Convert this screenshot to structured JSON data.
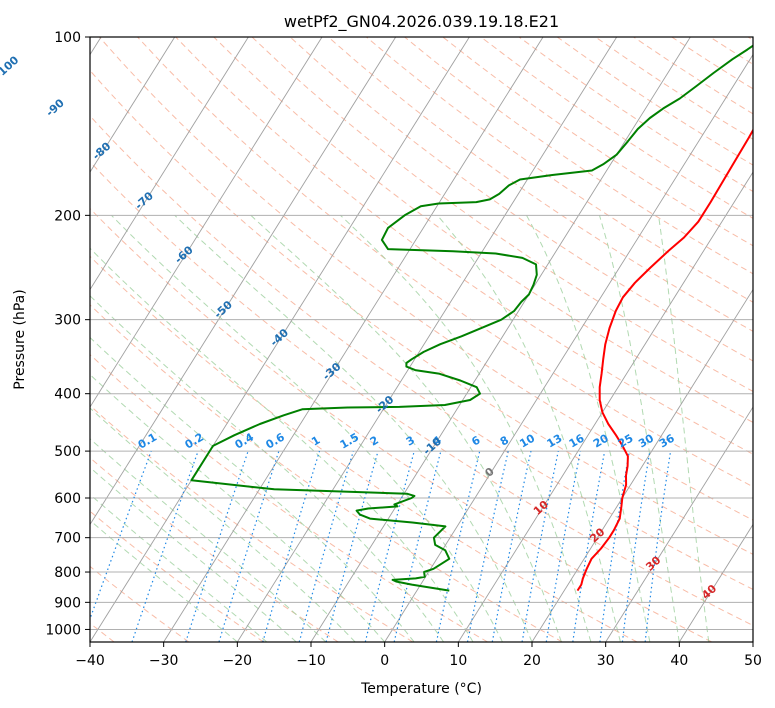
{
  "chart_data": {
    "type": "line",
    "title": "wetPf2_GN04.2026.039.19.18.E21",
    "xlabel": "Temperature (°C)",
    "ylabel": "Pressure (hPa)",
    "xlim": [
      -40,
      50
    ],
    "ylim": [
      1050,
      100
    ],
    "y_scale": "log",
    "grid": true,
    "x_ticks": [
      -40,
      -30,
      -20,
      -10,
      0,
      10,
      20,
      30,
      40,
      50
    ],
    "y_ticks": [
      100,
      200,
      300,
      400,
      500,
      600,
      700,
      800,
      900,
      1000
    ],
    "colors": {
      "temperature": "#ff0000",
      "dewpoint": "#008000",
      "isotherm": "#a0a0a0",
      "dry_adiabat": "#f6a58a",
      "moist_adiabat": "#9ecf9e",
      "mixing_ratio": "#1e88e5",
      "isotherm_label": "#1f6fb2",
      "positive_label": "#d62728"
    },
    "series": [
      {
        "key": "temperature",
        "points": [
          [
            21.8,
            860
          ],
          [
            21.8,
            840
          ],
          [
            21.5,
            820
          ],
          [
            21.2,
            790
          ],
          [
            21.0,
            760
          ],
          [
            21.4,
            730
          ],
          [
            21.6,
            700
          ],
          [
            21.6,
            680
          ],
          [
            21.4,
            650
          ],
          [
            20.6,
            620
          ],
          [
            20.0,
            600
          ],
          [
            19.4,
            570
          ],
          [
            18.6,
            550
          ],
          [
            18.0,
            530
          ],
          [
            17.2,
            510
          ],
          [
            15.6,
            490
          ],
          [
            13.8,
            470
          ],
          [
            11.8,
            450
          ],
          [
            10.0,
            430
          ],
          [
            8.6,
            410
          ],
          [
            7.5,
            390
          ],
          [
            6.6,
            370
          ],
          [
            5.6,
            350
          ],
          [
            4.6,
            330
          ],
          [
            3.8,
            310
          ],
          [
            3.2,
            290
          ],
          [
            3.0,
            275
          ],
          [
            3.4,
            260
          ],
          [
            4.2,
            245
          ],
          [
            5.2,
            230
          ],
          [
            6.2,
            218
          ],
          [
            6.8,
            205
          ],
          [
            6.8,
            190
          ],
          [
            6.7,
            175
          ],
          [
            6.6,
            160
          ],
          [
            6.5,
            148
          ],
          [
            6.3,
            135
          ],
          [
            6.1,
            125
          ],
          [
            5.6,
            117
          ],
          [
            5.4,
            111
          ],
          [
            5.8,
            106
          ],
          [
            6.8,
            102
          ],
          [
            7.8,
            100
          ]
        ]
      },
      {
        "key": "dewpoint",
        "points": [
          [
            4.4,
            860
          ],
          [
            1.6,
            850
          ],
          [
            -1.2,
            840
          ],
          [
            -3.6,
            830
          ],
          [
            -4.2,
            825
          ],
          [
            -1.2,
            820
          ],
          [
            -0.1,
            815
          ],
          [
            -0.6,
            800
          ],
          [
            0.4,
            790
          ],
          [
            1.7,
            760
          ],
          [
            0.4,
            735
          ],
          [
            -1.4,
            720
          ],
          [
            -2.2,
            700
          ],
          [
            -1.8,
            680
          ],
          [
            -1.6,
            670
          ],
          [
            -6.4,
            660
          ],
          [
            -12.5,
            650
          ],
          [
            -14.2,
            640
          ],
          [
            -15.0,
            630
          ],
          [
            -13.6,
            625
          ],
          [
            -9.8,
            620
          ],
          [
            -10.4,
            615
          ],
          [
            -8.6,
            600
          ],
          [
            -8.4,
            595
          ],
          [
            -9.6,
            590
          ],
          [
            -28.0,
            580
          ],
          [
            -40.0,
            560
          ],
          [
            -40.0,
            490
          ],
          [
            -38.0,
            470
          ],
          [
            -35.5,
            450
          ],
          [
            -33.0,
            435
          ],
          [
            -31.0,
            425
          ],
          [
            -25.0,
            422
          ],
          [
            -18.0,
            421
          ],
          [
            -12.0,
            418
          ],
          [
            -9.0,
            410
          ],
          [
            -8.2,
            400
          ],
          [
            -9.2,
            390
          ],
          [
            -12.0,
            380
          ],
          [
            -15.5,
            370
          ],
          [
            -19.0,
            365
          ],
          [
            -20.5,
            360
          ],
          [
            -20.8,
            355
          ],
          [
            -20.4,
            350
          ],
          [
            -19.4,
            340
          ],
          [
            -17.8,
            330
          ],
          [
            -15.6,
            320
          ],
          [
            -13.6,
            310
          ],
          [
            -11.6,
            300
          ],
          [
            -10.6,
            290
          ],
          [
            -10.4,
            280
          ],
          [
            -10.0,
            272
          ],
          [
            -10.2,
            262
          ],
          [
            -10.6,
            252
          ],
          [
            -11.6,
            242
          ],
          [
            -14.0,
            236
          ],
          [
            -18.0,
            232
          ],
          [
            -24.0,
            230
          ],
          [
            -33.0,
            228
          ],
          [
            -34.6,
            220
          ],
          [
            -34.8,
            210
          ],
          [
            -33.6,
            200
          ],
          [
            -32.2,
            193
          ],
          [
            -30.0,
            191
          ],
          [
            -25.0,
            190
          ],
          [
            -23.4,
            188
          ],
          [
            -22.6,
            184
          ],
          [
            -22.0,
            178
          ],
          [
            -21.0,
            174
          ],
          [
            -17.0,
            171
          ],
          [
            -12.0,
            168
          ],
          [
            -11.0,
            164
          ],
          [
            -10.0,
            158
          ],
          [
            -9.6,
            150
          ],
          [
            -9.3,
            143
          ],
          [
            -8.6,
            137
          ],
          [
            -7.6,
            132
          ],
          [
            -6.2,
            127
          ],
          [
            -5.0,
            121
          ],
          [
            -3.8,
            115
          ],
          [
            -2.4,
            109
          ],
          [
            -1.2,
            105
          ],
          [
            0.2,
            100
          ]
        ]
      }
    ],
    "isotherm_labels": [
      "-100",
      "-90",
      "-80",
      "-70",
      "-60",
      "-50",
      "-40",
      "-30",
      "-20",
      "-10",
      "0",
      "10",
      "20",
      "30",
      "40"
    ],
    "mixing_ratio_labels": [
      "0.1",
      "0.2",
      "0.4",
      "0.6",
      "1",
      "1.5",
      "2",
      "3",
      "4",
      "6",
      "8",
      "10",
      "13",
      "16",
      "20",
      "25",
      "30",
      "36"
    ],
    "mixing_ratio_values": [
      0.1,
      0.2,
      0.4,
      0.6,
      1,
      1.5,
      2,
      3,
      4,
      6,
      8,
      10,
      13,
      16,
      20,
      25,
      30,
      36
    ]
  }
}
